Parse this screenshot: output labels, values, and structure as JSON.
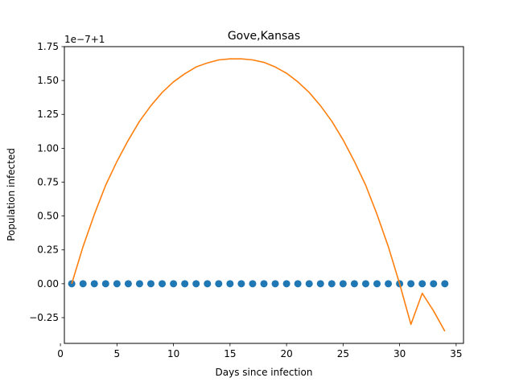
{
  "chart_data": {
    "type": "scatter",
    "title": "Gove,Kansas",
    "xlabel": "Days since infection",
    "ylabel": "Population infected",
    "offset_text": "1e−7+1",
    "xlim": [
      0.35,
      35.65
    ],
    "ylim": [
      -0.44,
      1.75
    ],
    "xticks": [
      0,
      5,
      10,
      15,
      20,
      25,
      30,
      35
    ],
    "xtick_labels": [
      "0",
      "5",
      "10",
      "15",
      "20",
      "25",
      "30",
      "35"
    ],
    "yticks": [
      -0.25,
      0.0,
      0.25,
      0.5,
      0.75,
      1.0,
      1.25,
      1.5,
      1.75
    ],
    "ytick_labels": [
      "−0.25",
      "0.00",
      "0.25",
      "0.50",
      "0.75",
      "1.00",
      "1.25",
      "1.50",
      "1.75"
    ],
    "grid": false,
    "series": [
      {
        "kind": "scatter",
        "color": "#1f77b4",
        "x": [
          1,
          2,
          3,
          4,
          5,
          6,
          7,
          8,
          9,
          10,
          11,
          12,
          13,
          14,
          15,
          16,
          17,
          18,
          19,
          20,
          21,
          22,
          23,
          24,
          25,
          26,
          27,
          28,
          29,
          30,
          31,
          32,
          33,
          34
        ],
        "y": [
          0,
          0,
          0,
          0,
          0,
          0,
          0,
          0,
          0,
          0,
          0,
          0,
          0,
          0,
          0,
          0,
          0,
          0,
          0,
          0,
          0,
          0,
          0,
          0,
          0,
          0,
          0,
          0,
          0,
          0,
          0,
          0,
          0,
          0
        ]
      },
      {
        "kind": "line",
        "color": "#ff7f0e",
        "x": [
          1,
          2,
          3,
          4,
          5,
          6,
          7,
          8,
          9,
          10,
          11,
          12,
          13,
          14,
          15,
          16,
          17,
          18,
          19,
          20,
          21,
          22,
          23,
          24,
          25,
          26,
          27,
          28,
          29,
          30,
          31,
          32,
          33,
          34
        ],
        "y": [
          0.0,
          0.274,
          0.512,
          0.727,
          0.903,
          1.059,
          1.2,
          1.314,
          1.412,
          1.49,
          1.55,
          1.6,
          1.63,
          1.652,
          1.66,
          1.66,
          1.652,
          1.634,
          1.6,
          1.554,
          1.49,
          1.412,
          1.314,
          1.2,
          1.062,
          0.903,
          0.727,
          0.512,
          0.274,
          0.0,
          -0.3,
          -0.07,
          -0.2,
          -0.35
        ]
      }
    ]
  }
}
